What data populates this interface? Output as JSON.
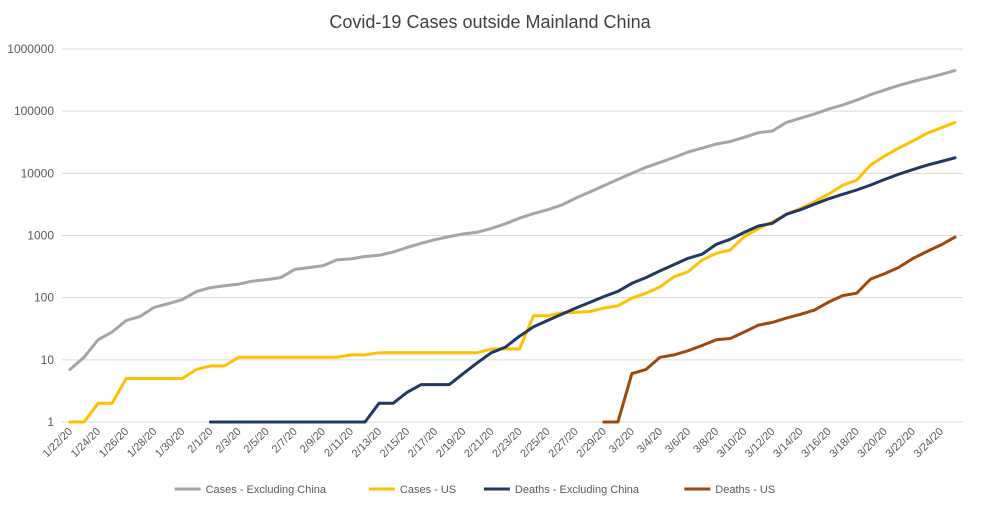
{
  "chart_data": {
    "type": "line",
    "title": "Covid-19 Cases outside Mainland China",
    "xlabel": "",
    "ylabel": "",
    "y_scale": "log",
    "ylim": [
      1,
      1000000
    ],
    "grid": true,
    "legend_position": "bottom",
    "y_ticks": [
      "1",
      "10",
      "100",
      "1000",
      "10000",
      "100000",
      "1000000"
    ],
    "x": [
      "1/22/20",
      "1/23/20",
      "1/24/20",
      "1/25/20",
      "1/26/20",
      "1/27/20",
      "1/28/20",
      "1/29/20",
      "1/30/20",
      "1/31/20",
      "2/1/20",
      "2/2/20",
      "2/3/20",
      "2/4/20",
      "2/5/20",
      "2/6/20",
      "2/7/20",
      "2/8/20",
      "2/9/20",
      "2/10/20",
      "2/11/20",
      "2/12/20",
      "2/13/20",
      "2/14/20",
      "2/15/20",
      "2/16/20",
      "2/17/20",
      "2/18/20",
      "2/19/20",
      "2/20/20",
      "2/21/20",
      "2/22/20",
      "2/23/20",
      "2/24/20",
      "2/25/20",
      "2/26/20",
      "2/27/20",
      "2/28/20",
      "2/29/20",
      "3/1/20",
      "3/2/20",
      "3/3/20",
      "3/4/20",
      "3/5/20",
      "3/6/20",
      "3/7/20",
      "3/8/20",
      "3/9/20",
      "3/10/20",
      "3/11/20",
      "3/12/20",
      "3/13/20",
      "3/14/20",
      "3/15/20",
      "3/16/20",
      "3/17/20",
      "3/18/20",
      "3/19/20",
      "3/20/20",
      "3/21/20",
      "3/22/20",
      "3/23/20",
      "3/24/20",
      "3/25/20"
    ],
    "x_tick_labels": [
      "1/22/20",
      "1/24/20",
      "1/26/20",
      "1/28/20",
      "1/30/20",
      "2/1/20",
      "2/3/20",
      "2/5/20",
      "2/7/20",
      "2/9/20",
      "2/11/20",
      "2/13/20",
      "2/15/20",
      "2/17/20",
      "2/19/20",
      "2/21/20",
      "2/23/20",
      "2/25/20",
      "2/27/20",
      "2/29/20",
      "3/2/20",
      "3/4/20",
      "3/6/20",
      "3/8/20",
      "3/10/20",
      "3/12/20",
      "3/14/20",
      "3/16/20",
      "3/18/20",
      "3/20/20",
      "3/22/20",
      "3/24/20"
    ],
    "series": [
      {
        "name": "Cases - Excluding China",
        "color": "#a5a5a5",
        "values": [
          7,
          11,
          21,
          28,
          43,
          50,
          70,
          80,
          93,
          125,
          145,
          155,
          165,
          185,
          195,
          210,
          285,
          305,
          325,
          405,
          420,
          460,
          480,
          540,
          640,
          750,
          860,
          960,
          1060,
          1130,
          1300,
          1550,
          1900,
          2250,
          2600,
          3100,
          4000,
          5000,
          6300,
          8000,
          10000,
          12500,
          15000,
          18000,
          22000,
          25500,
          29500,
          32500,
          38000,
          45000,
          48000,
          66000,
          77000,
          90000,
          108000,
          125000,
          150000,
          185000,
          220000,
          260000,
          300000,
          340000,
          390000,
          450000
        ]
      },
      {
        "name": "Cases - US",
        "color": "#ffc000",
        "values": [
          1,
          1,
          2,
          2,
          5,
          5,
          5,
          5,
          5,
          7,
          8,
          8,
          11,
          11,
          11,
          11,
          11,
          11,
          11,
          11,
          12,
          12,
          13,
          13,
          13,
          13,
          13,
          13,
          13,
          13,
          15,
          15,
          15,
          51,
          51,
          57,
          58,
          60,
          68,
          74,
          98,
          118,
          149,
          217,
          262,
          402,
          518,
          583,
          959,
          1281,
          1663,
          2179,
          2727,
          3499,
          4632,
          6421,
          7786,
          13680,
          19100,
          25489,
          33276,
          43847,
          53740,
          65778
        ]
      },
      {
        "name": "Deaths - Excluding China",
        "color": "#203864",
        "values": [
          null,
          null,
          null,
          null,
          null,
          null,
          null,
          null,
          null,
          null,
          1,
          1,
          1,
          1,
          1,
          1,
          1,
          1,
          1,
          1,
          1,
          1,
          2,
          2,
          3,
          4,
          4,
          4,
          6,
          9,
          13,
          16,
          24,
          34,
          43,
          54,
          68,
          84,
          104,
          126,
          170,
          210,
          270,
          340,
          430,
          500,
          720,
          870,
          1120,
          1420,
          1570,
          2200,
          2600,
          3200,
          3900,
          4600,
          5400,
          6500,
          8000,
          9700,
          11500,
          13500,
          15500,
          17800
        ]
      },
      {
        "name": "Deaths - US",
        "color": "#9e480e",
        "values": [
          null,
          null,
          null,
          null,
          null,
          null,
          null,
          null,
          null,
          null,
          null,
          null,
          null,
          null,
          null,
          null,
          null,
          null,
          null,
          null,
          null,
          null,
          null,
          null,
          null,
          null,
          null,
          null,
          null,
          null,
          null,
          null,
          null,
          null,
          null,
          null,
          null,
          null,
          1,
          1,
          6,
          7,
          11,
          12,
          14,
          17,
          21,
          22,
          28,
          36,
          40,
          47,
          54,
          63,
          85,
          108,
          118,
          200,
          244,
          307,
          427,
          552,
          706,
          942
        ]
      }
    ]
  }
}
